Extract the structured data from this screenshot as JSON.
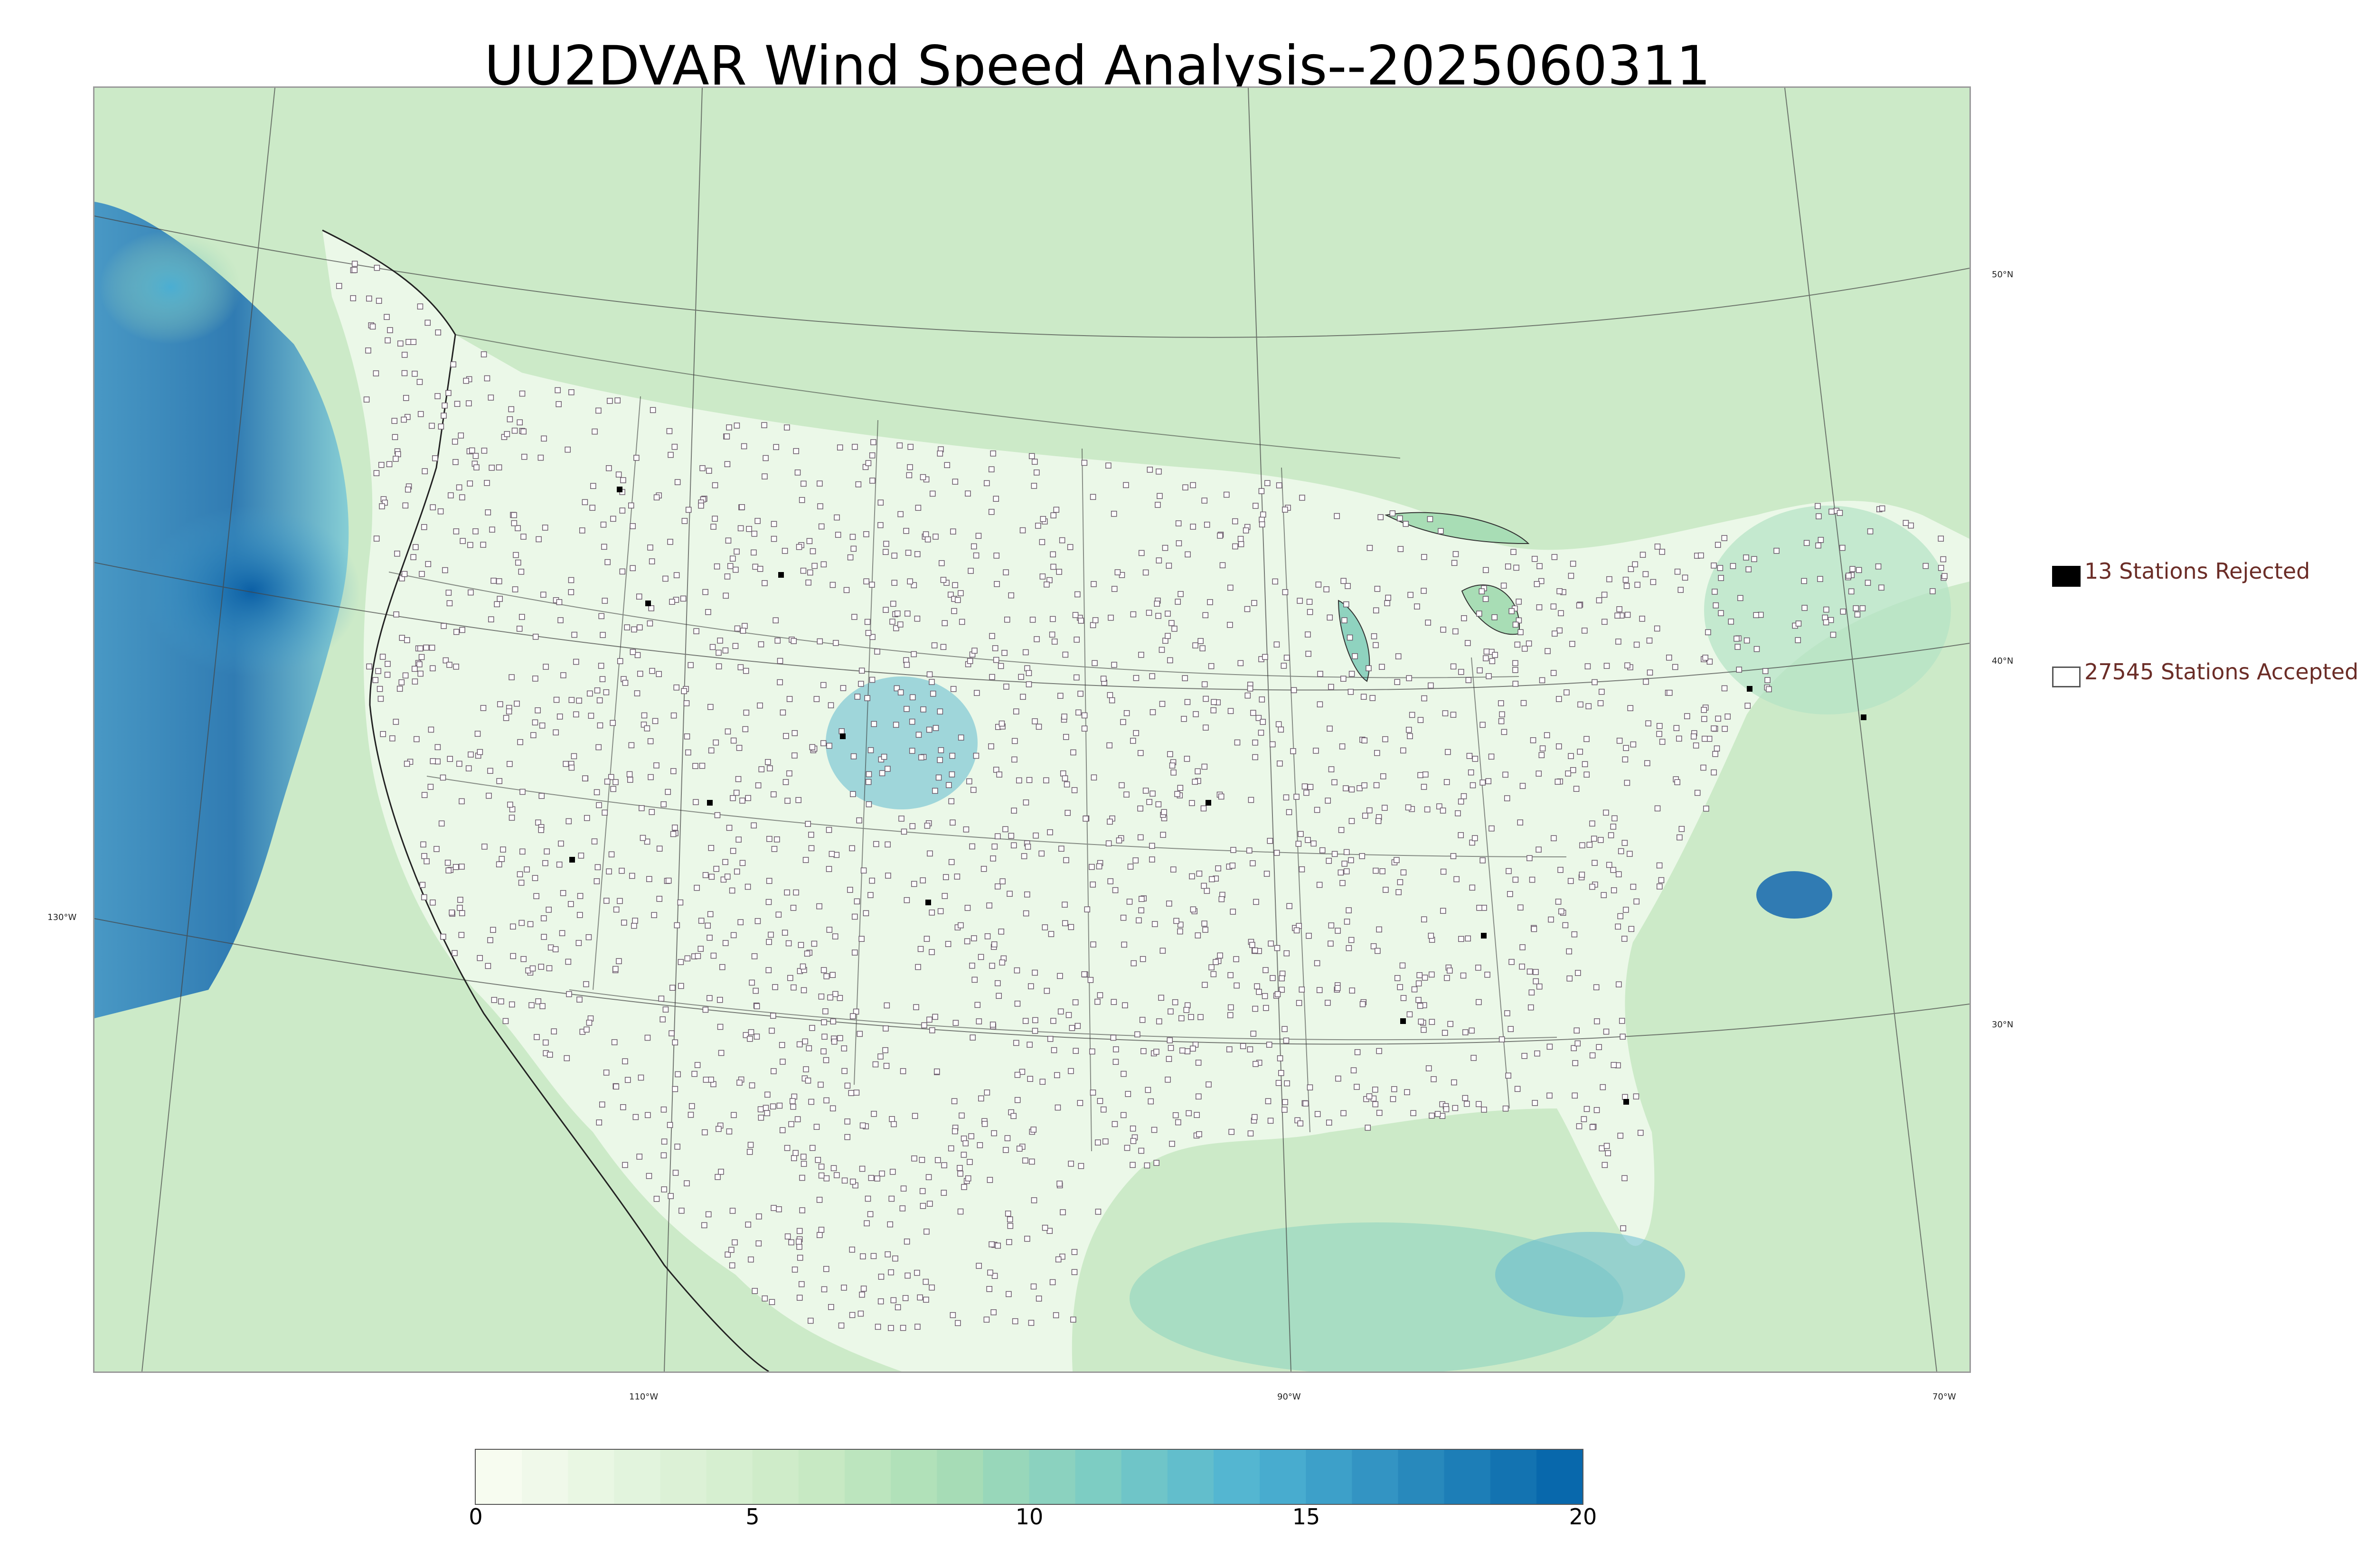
{
  "title": "UU2DVAR Wind Speed Analysis--2025060311",
  "map": {
    "lat_labels": [
      "50°N",
      "40°N",
      "30°N"
    ],
    "lon_labels": [
      "130°W",
      "110°W",
      "90°W",
      "70°W"
    ]
  },
  "legend": {
    "rejected_label": "13 Stations Rejected",
    "accepted_label": "27545 Stations Accepted",
    "rejected_color": "#000000",
    "accepted_color": "#ffffff"
  },
  "colorbar": {
    "tick_labels": [
      "0",
      "5",
      "10",
      "15",
      "20"
    ],
    "range": [
      0,
      20
    ],
    "colors": [
      "#f7fcf0",
      "#e0f3db",
      "#ccebc5",
      "#a8ddb5",
      "#7bccc4",
      "#4eb3d3",
      "#2b8cbe",
      "#0868ac"
    ]
  },
  "colors": {
    "ocean_fill": "#4a9ccd",
    "land_fill": "#e9f6e4",
    "border_line": "#333333"
  }
}
